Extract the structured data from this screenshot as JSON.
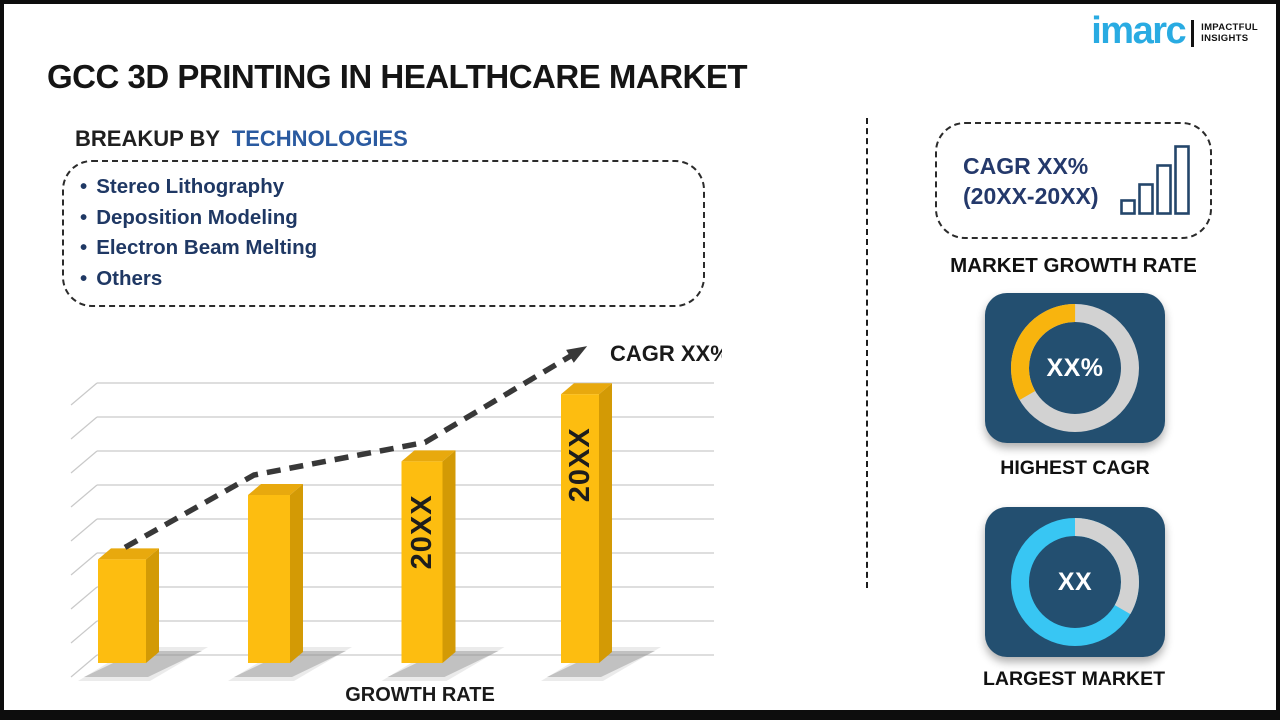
{
  "logo": {
    "brand": "imarc",
    "tagline_line1": "IMPACTFUL",
    "tagline_line2": "INSIGHTS",
    "brand_color": "#29abe2"
  },
  "title": "GCC 3D PRINTING IN HEALTHCARE MARKET",
  "breakup": {
    "heading_prefix": "BREAKUP BY",
    "heading_highlight": "TECHNOLOGIES",
    "bullet": "•",
    "items": [
      "Stereo Lithography",
      "Deposition Modeling",
      "Electron Beam Melting",
      "Others"
    ]
  },
  "chart_data": {
    "type": "bar",
    "title": "",
    "xlabel": "GROWTH RATE",
    "ylabel": "",
    "categories": [
      "",
      "",
      "20XX",
      "20XX"
    ],
    "values": [
      37,
      60,
      72,
      96
    ],
    "ylim": [
      0,
      100
    ],
    "grid": true,
    "gridlines": 9,
    "legend_position": "none",
    "bar_labels_inside_rotated": true,
    "trend_label": "CAGR XX%",
    "trend_style": "dashed-rising-arrow"
  },
  "sidebar": {
    "cagr_box": {
      "line1": "CAGR XX%",
      "line2": "(20XX-20XX)",
      "icon": "bar-chart-icon"
    },
    "market_growth_label": "MARKET GROWTH RATE",
    "highest_cagr": {
      "value": "XX%",
      "label": "HIGHEST CAGR",
      "base_color": "#d2d2d2",
      "segment_color": "#f8b40e",
      "segment_start_deg": 240,
      "segment_sweep_deg": 120
    },
    "largest_market": {
      "value": "XX",
      "label": "LARGEST MARKET",
      "base_color": "#38c6f3",
      "segment_color": "#d2d2d2",
      "segment_start_deg": 0,
      "segment_sweep_deg": 120
    }
  },
  "colors": {
    "accent_blue": "#2a5aa0",
    "navy_text": "#1f3864",
    "imarc_blue": "#29abe2",
    "tile_bg": "#234f70",
    "donut_gray": "#d2d2d2",
    "donut_yellow": "#f8b40e",
    "donut_cyan": "#38c6f3",
    "bar_front": "#fdbd10",
    "bar_top": "#e8a90e",
    "bar_side": "#d39a05",
    "grid": "#c9c9c9",
    "trend": "#383838",
    "shadow": "#8f8f8f",
    "icon_stroke": "#24466b",
    "text_dark": "#1a1a1a"
  }
}
